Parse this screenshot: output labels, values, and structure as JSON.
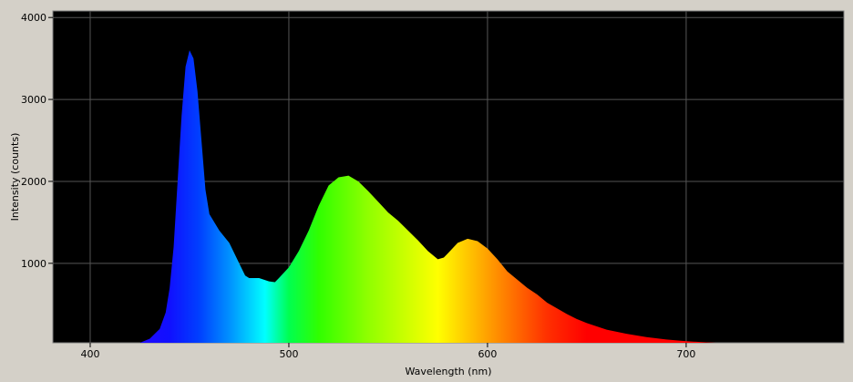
{
  "chart_data": {
    "type": "area",
    "x_label": "Wavelength (nm)",
    "y_label": "Intensity (counts)",
    "x": [
      410,
      415,
      420,
      425,
      430,
      435,
      438,
      440,
      442,
      444,
      446,
      448,
      450,
      452,
      454,
      456,
      458,
      460,
      465,
      470,
      475,
      478,
      480,
      485,
      490,
      493,
      495,
      500,
      505,
      510,
      515,
      520,
      525,
      530,
      535,
      540,
      545,
      550,
      555,
      560,
      565,
      570,
      575,
      578,
      580,
      585,
      590,
      595,
      600,
      605,
      610,
      615,
      620,
      625,
      630,
      635,
      640,
      645,
      650,
      660,
      670,
      680,
      690,
      700,
      710,
      720,
      730,
      740,
      750,
      760,
      770
    ],
    "values": [
      0,
      5,
      10,
      30,
      80,
      200,
      400,
      700,
      1200,
      2000,
      2800,
      3400,
      3600,
      3500,
      3100,
      2500,
      1900,
      1600,
      1400,
      1250,
      1000,
      850,
      820,
      820,
      780,
      770,
      820,
      950,
      1150,
      1400,
      1700,
      1950,
      2050,
      2070,
      2000,
      1880,
      1750,
      1620,
      1520,
      1400,
      1280,
      1150,
      1050,
      1070,
      1120,
      1250,
      1300,
      1270,
      1180,
      1050,
      900,
      800,
      700,
      620,
      520,
      450,
      380,
      320,
      270,
      190,
      140,
      100,
      70,
      50,
      35,
      25,
      18,
      12,
      8,
      5,
      3
    ],
    "xlim": [
      381.2,
      779.4
    ],
    "ylim": [
      30,
      4080
    ],
    "xticks": [
      400,
      500,
      600,
      700
    ],
    "yticks": [
      1000,
      2000,
      3000,
      4000
    ],
    "grid": true
  }
}
